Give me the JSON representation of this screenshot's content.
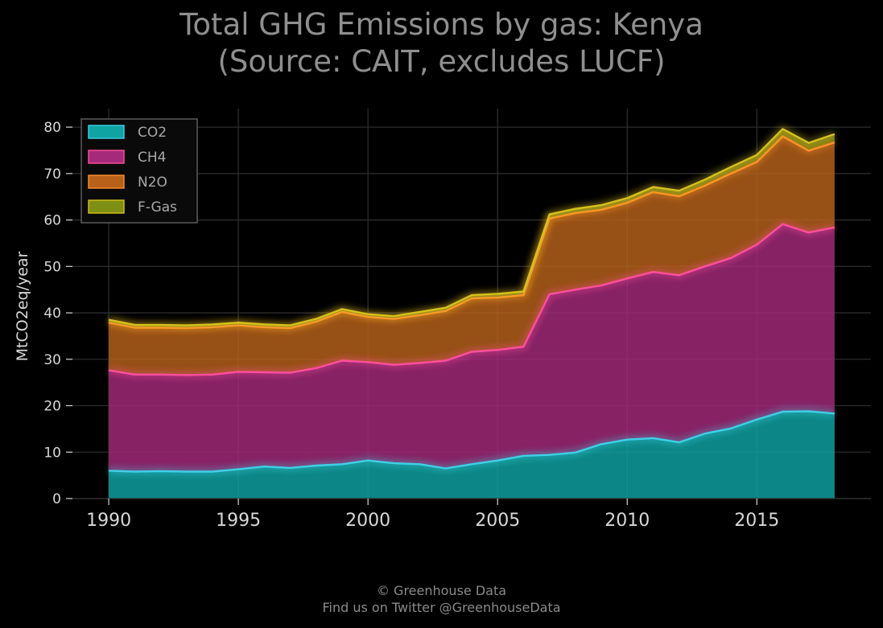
{
  "title_line1": "Total GHG Emissions by gas: Kenya",
  "title_line2": "(Source: CAIT, excludes LUCF)",
  "footer_line1": "© Greenhouse Data",
  "footer_line2": "Find us on Twitter @GreenhouseData",
  "chart_data": {
    "type": "area",
    "stacked": true,
    "ylabel": "MtCO2eq/year",
    "xlabel": "",
    "xlim": [
      1988.6,
      2019.4
    ],
    "ylim": [
      0,
      84
    ],
    "xticks": [
      1990,
      1995,
      2000,
      2005,
      2010,
      2015
    ],
    "yticks": [
      0,
      10,
      20,
      30,
      40,
      50,
      60,
      70,
      80
    ],
    "grid": true,
    "legend_position": "top-left",
    "x": [
      1990,
      1991,
      1992,
      1993,
      1994,
      1995,
      1996,
      1997,
      1998,
      1999,
      2000,
      2001,
      2002,
      2003,
      2004,
      2005,
      2006,
      2007,
      2008,
      2009,
      2010,
      2011,
      2012,
      2013,
      2014,
      2015,
      2016,
      2017,
      2018
    ],
    "series": [
      {
        "name": "CO2",
        "color": "#0fa3a3",
        "line_color": "#3fd0e6",
        "values": [
          6.0,
          5.8,
          5.9,
          5.8,
          5.8,
          6.3,
          6.9,
          6.6,
          7.1,
          7.4,
          8.2,
          7.6,
          7.4,
          6.5,
          7.4,
          8.2,
          9.2,
          9.4,
          9.9,
          11.7,
          12.7,
          13.0,
          12.1,
          14.0,
          15.1,
          17.0,
          18.7,
          18.8,
          18.3
        ]
      },
      {
        "name": "CH4",
        "color": "#a52a7a",
        "line_color": "#ff4f9d",
        "values": [
          21.6,
          20.9,
          20.8,
          20.8,
          20.9,
          21.0,
          20.3,
          20.5,
          21.0,
          22.3,
          21.2,
          21.2,
          21.8,
          23.2,
          24.2,
          23.8,
          23.5,
          34.6,
          35.1,
          34.2,
          34.7,
          35.8,
          36.0,
          36.0,
          36.7,
          37.7,
          40.4,
          38.5,
          40.1
        ]
      },
      {
        "name": "N2O",
        "color": "#b8611a",
        "line_color": "#ff8f2a",
        "values": [
          10.3,
          10.1,
          10.1,
          10.1,
          10.2,
          10.0,
          9.7,
          9.6,
          10.0,
          10.5,
          9.7,
          9.9,
          10.3,
          10.7,
          11.5,
          11.3,
          11.1,
          16.3,
          16.5,
          16.3,
          16.3,
          17.2,
          17.0,
          17.4,
          18.2,
          17.8,
          18.9,
          17.6,
          18.3
        ]
      },
      {
        "name": "F-Gas",
        "color": "#7f8f14",
        "line_color": "#d6c21a",
        "values": [
          0.6,
          0.6,
          0.6,
          0.6,
          0.6,
          0.6,
          0.6,
          0.6,
          0.6,
          0.6,
          0.6,
          0.6,
          0.7,
          0.7,
          0.7,
          0.8,
          0.8,
          0.9,
          0.9,
          1.0,
          1.0,
          1.1,
          1.2,
          1.3,
          1.4,
          1.5,
          1.6,
          1.7,
          1.8
        ]
      }
    ]
  }
}
